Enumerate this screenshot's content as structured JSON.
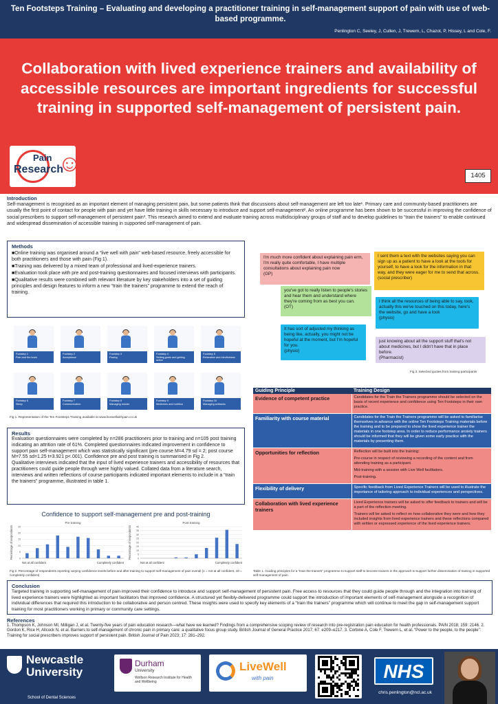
{
  "header": {
    "title": "Ten Footsteps Training – Evaluating and developing a practitioner training in self-management support of pain with use of web-based programme.",
    "authors": "Penlington C, Seeley, J, Cullen, J, Trewern, L, Chazot, P, Hissey, L and Cole, F."
  },
  "headline": "Collaboration with lived experience trainers and availability of accessible resources are important ingredients for successful training in supported self-management of persistent pain.",
  "logo": {
    "line1": "Pain",
    "line2": "Research"
  },
  "poster_id": "1405",
  "intro": {
    "title": "Introduction",
    "text": "Self-management is recognised as an important element of managing persistent pain, but some patients think that discussions about self-management are left too late¹. Primary care and community-based practitioners are usually the first point of contact for people with pain and yet have little training in skills necessary to introduce and support self-management². An online programme has been shown to be successful in improving the confidence of social prescribers to support self-management of persistent pain³. This research aimed to extend and evaluate training across multidisciplinary groups of staff and to develop guidelines to “train the trainers” to enable continued and widespread dissemination of accessible training in supported self-management of pain."
  },
  "methods": {
    "title": "Methods",
    "items": [
      "Online training was organised around a “live well with pain” web-based resource, freely accessible for both practitioners and those with pain (Fig 1).",
      "Training was delivered by a mixed team of professional and lived-experience trainers.",
      "Evaluation took place with pre and post-training questionnaires and focused interviews with participants.",
      "Qualitative results were combined with relevant literature by key stakeholders into a set of guiding principles and design features to inform a new “train the trainers” programme to extend the reach of training."
    ]
  },
  "quotes": [
    {
      "text": "I'm much more confident about explaining pain erm, I'm really quite comfortable, I have multiple consultations about explaining pain now",
      "role": "(GP)",
      "color": "#f5b3b1"
    },
    {
      "text": "I sent them a text with the websites saying you can sign up as a patient to have a look at the tools for yourself, to have a look for the information in that way, and they were eager for me to send that across.",
      "role": "(social prescriber)",
      "color": "#f7c531"
    },
    {
      "text": "you've got to really listen to people's stories and hear them and understand where they're coming from as best you can.",
      "role": "(OT)",
      "color": "#b3e29a"
    },
    {
      "text": "I think all the resources of being able to say, look, actually this we've touched on this today, here's the website, go and have a look",
      "role": "(physio)",
      "color": "#1eb7ea"
    },
    {
      "text": "It has sort of adjusted my thinking as being like, actually, you might not be hopeful at the moment, but I'm hopeful for you.",
      "role": "(physio)",
      "color": "#1eb7ea"
    },
    {
      "text": "just knowing about all the support stuff that's not about medicines, but I didn't have that in place before.",
      "role": "(Pharmacist)",
      "color": "#dcd1ec"
    }
  ],
  "quotes_caption": "Fig 3. Selected quotes from training participants",
  "footsteps": [
    {
      "label": "Footstep 1\nPain and the brain"
    },
    {
      "label": "Footstep 2\nAcceptance"
    },
    {
      "label": "Footstep 3\nPacing"
    },
    {
      "label": "Footstep 4\nSetting goals and getting active"
    },
    {
      "label": "Footstep 5\nRelaxation and mindfulness"
    },
    {
      "label": "Footstep 6\nSleep"
    },
    {
      "label": "Footstep 7\nCommunication"
    },
    {
      "label": "Footstep 8\nManaging moods"
    },
    {
      "label": "Footstep 9\nMedicines and nutrition"
    },
    {
      "label": "Footstep 10\nManaging setbacks"
    }
  ],
  "fig1_caption": "Fig 1. Representation of the Ten Footsteps Training available at www.livewellwithpain.co.uk",
  "results": {
    "title": "Results",
    "p1": "Evaluation questionnaires were completed by n=286 practitioners prior to training and n=105 post training indicating an attrition rate of 61%. Completed questionnaires indicated improvement in confidence to support pain self-management which was statistically significant (pre course M=4.79 sd = 2; post course M=7.55 sd=1.25 t=3.921 p<.001). Confidence pre and post training is summarised in Fig 2.",
    "p2": "Qualitative interviews indicated that the input of lived experience trainers and accessibility of resources that practitioners could guide people through were highly valued. Collated data from a literature search, interviews and written reflections of course participants indicated important elements to include in a “train the trainers” programme, illustrated in table 1."
  },
  "chart_title": "Confidence to support self-management pre and post-training",
  "chart_data": [
    {
      "type": "bar",
      "title": "Pre training",
      "ylabel": "Percentage of respondents",
      "xlabel_left": "Not at all confident",
      "xlabel_right": "Completely confident",
      "categories": [
        "1",
        "2",
        "3",
        "4",
        "5",
        "6",
        "7",
        "8",
        "9",
        "10"
      ],
      "values": [
        4,
        8,
        11,
        18,
        9,
        17,
        16,
        7,
        2,
        2
      ],
      "ylim": [
        0,
        25
      ],
      "yticks": [
        "0",
        "5",
        "10",
        "15",
        "20",
        "25"
      ]
    },
    {
      "type": "bar",
      "title": "Post training",
      "ylabel": "Percentage of respondents",
      "xlabel_left": "Not at all confident",
      "xlabel_right": "Completely confident",
      "categories": [
        "1",
        "2",
        "3",
        "4",
        "5",
        "6",
        "7",
        "8",
        "9",
        "10"
      ],
      "values": [
        0,
        0,
        0,
        1,
        1,
        5,
        13,
        26,
        36,
        18
      ],
      "ylim": [
        0,
        40
      ],
      "yticks": [
        "0",
        "5",
        "10",
        "15",
        "20",
        "25",
        "30",
        "35",
        "40"
      ]
    }
  ],
  "fig2_caption": "Fig 2. Percentage of respondents reporting varying confidence levels before and after training to support self-management of pain overall (1 = not at all confident, 10 = completely confident)",
  "table": {
    "headers": [
      "Guiding Principle",
      "Training Design"
    ],
    "rows": [
      {
        "principle": "Evidence of competent practice",
        "design": [
          "Candidates for the Train the Trainers programme should be selected on the basis of recent experience and confidence using Ten Footsteps in their own practice."
        ],
        "style": "red"
      },
      {
        "principle": "Familiarity with course material",
        "design": [
          "Candidates for the Train the Trainers programme will be asked to familiarise themselves in advance with the online Ten Footsteps Training materials before the training and to be prepared to show the lived experience trainer the materials in one footstep area. In order to reduce performance anxiety trainers should be informed that they will be given some early practice with the materials by presenting them."
        ],
        "style": "blue"
      },
      {
        "principle": "Opportunities for reflection",
        "design": [
          "Reflection will be built into the training:",
          "Pre-course in respect of reviewing a recording of the content and from attending training as a participant.",
          "Mid-training with a session with Live Well facilitators.",
          "Post-training."
        ],
        "style": "red"
      },
      {
        "principle": "Flexibility of delivery",
        "design": [
          "Specific feedback from Lived Experience Trainers will be used to illustrate the importance of tailoring approach to individual experiences and perspectives."
        ],
        "style": "blue"
      },
      {
        "principle": "Collaboration with lived experience trainers",
        "design": [
          "Lived Experience trainers will be asked to offer feedback to trainers and will be a part of the reflection meeting.",
          "Trainers will be asked to reflect on how collaborative they were and how they included insights from lived experience trainers and these reflections compared with written or expressed experience of the lived experience trainers."
        ],
        "style": "red"
      }
    ]
  },
  "table_caption": "Table 1. Guiding principles for a “train the trainers” programme to support staff to become trainers in the approach to support further dissemination of training in supported self-management of pain.",
  "conclusion": {
    "title": "Conclusion",
    "text": "Targeted training in supporting self-management of pain improved their confidence to introduce and support self-management of persistent pain. Free access to resources that they could guide people through and the integration into training of lived experience trainers were highlighted as important facilitators that improved confidence. A structured yet flexibly-delivered programme could support the introduction of important elements of self-management alongside a recognition of individual differences that required this introduction to be collaborative and person centred. These insights were used to specify key elements of a “train the trainers” programme which will continue to meet the gap in self-management support training for most practitioners working in primary or community care settings."
  },
  "references": {
    "title": "References",
    "text": "1. Thompson K, Johnson MI, Milligan J, et al. Twenty-five years of pain education research—what have we learned? Findings from a comprehensive scoping review of research into pre-registration pain education for health professionals. PAIN 2018; 159: 2146. 2. Gordon K, Rice H, Allcock N, et al. Barriers to self-management of chronic pain in primary care: a qualitative focus group study. British Journal of General Practice 2017; 67: e209–e217. 3. Corbine A, Cole F, Trewern L, et al. “Power to the people, to the people”: Training for social prescribers improves support of persistent pain. British Journal of Pain 2023; 17: 281–292."
  },
  "footer": {
    "nu_line1": "Newcastle",
    "nu_line2": "University",
    "nu_school": "School of Dental Sciences",
    "durham_name": "Durham",
    "durham_sub": "University",
    "durham_inst": "Wolfson Research Institute for Health and Wellbeing",
    "livewell": "LiveWell",
    "livewell_sub": "with pain",
    "nhs": "NHS",
    "email": "chris.penlington@ncl.ac.uk"
  }
}
